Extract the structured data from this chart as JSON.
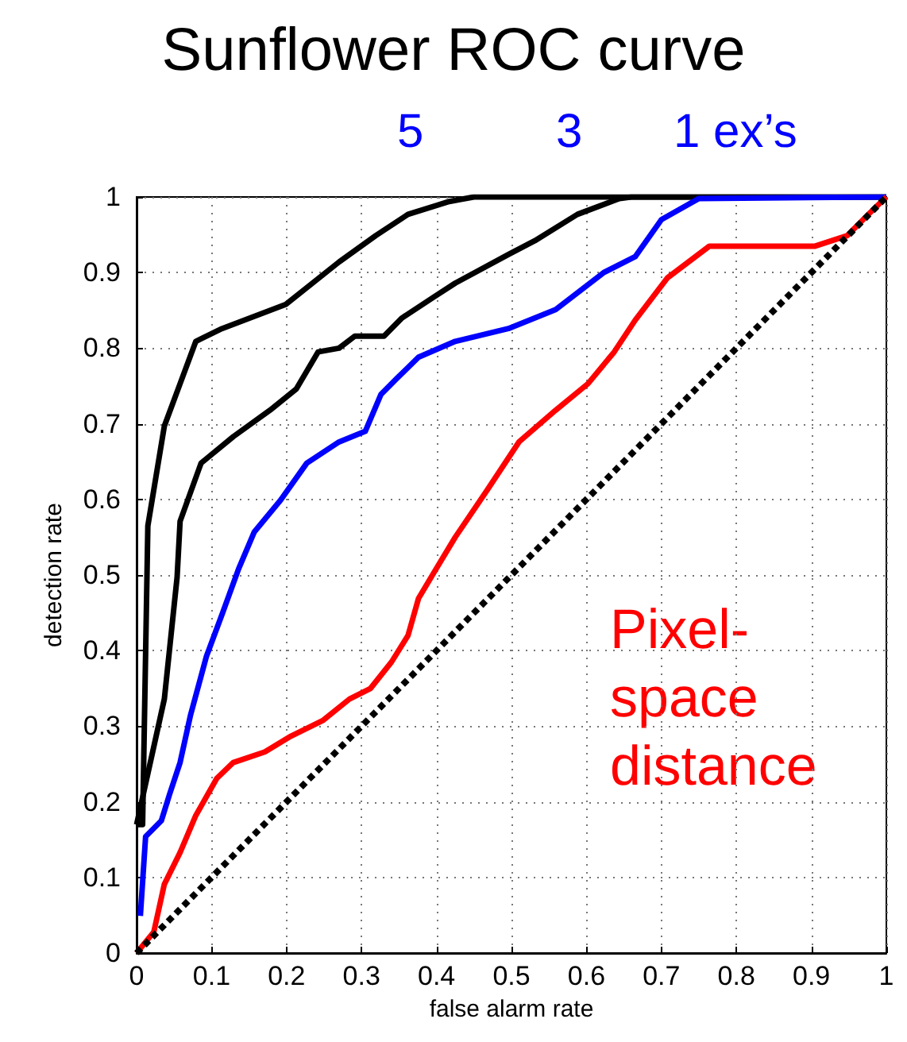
{
  "chart_data": {
    "type": "line",
    "title": "Sunflower ROC curve",
    "xlabel": "false alarm rate",
    "ylabel": "detection rate",
    "annotations": [
      "5",
      "3",
      "1 ex’s",
      "Pixel-space distance"
    ],
    "xlim": [
      0,
      1
    ],
    "ylim": [
      0,
      1
    ],
    "xticks": [
      0,
      0.1,
      0.2,
      0.3,
      0.4,
      0.5,
      0.6,
      0.7,
      0.8,
      0.9,
      1
    ],
    "yticks": [
      0,
      0.1,
      0.2,
      0.3,
      0.4,
      0.5,
      0.6,
      0.7,
      0.8,
      0.9,
      1
    ],
    "grid": true,
    "marker": "none",
    "line_style": "solid",
    "series": [
      {
        "color": "#000000",
        "x": [
          0,
          0.008,
          0.015,
          0.037,
          0.058,
          0.079,
          0.114,
          0.199,
          0.27,
          0.319,
          0.362,
          0.417,
          0.45,
          1
        ],
        "values": [
          0.17,
          0.17,
          0.565,
          0.697,
          0.753,
          0.809,
          0.826,
          0.858,
          0.914,
          0.949,
          0.977,
          0.994,
          1,
          1
        ]
      },
      {
        "color": "#000000",
        "x": [
          0,
          0.037,
          0.054,
          0.058,
          0.086,
          0.129,
          0.178,
          0.213,
          0.242,
          0.27,
          0.291,
          0.33,
          0.354,
          0.397,
          0.425,
          0.496,
          0.531,
          0.588,
          0.644,
          0.66,
          1
        ],
        "values": [
          0.17,
          0.336,
          0.497,
          0.571,
          0.648,
          0.683,
          0.718,
          0.746,
          0.795,
          0.8,
          0.816,
          0.816,
          0.84,
          0.868,
          0.886,
          0.924,
          0.942,
          0.977,
          0.998,
          1,
          1
        ]
      },
      {
        "color": "#0000ff",
        "x": [
          0.005,
          0.012,
          0.033,
          0.044,
          0.058,
          0.072,
          0.093,
          0.114,
          0.136,
          0.157,
          0.192,
          0.227,
          0.27,
          0.305,
          0.326,
          0.347,
          0.376,
          0.425,
          0.496,
          0.559,
          0.623,
          0.665,
          0.7,
          0.75,
          1
        ],
        "values": [
          0.049,
          0.154,
          0.175,
          0.21,
          0.252,
          0.315,
          0.392,
          0.448,
          0.508,
          0.557,
          0.599,
          0.648,
          0.676,
          0.69,
          0.739,
          0.76,
          0.788,
          0.809,
          0.826,
          0.851,
          0.9,
          0.921,
          0.97,
          0.998,
          1
        ]
      },
      {
        "color": "#ff0000",
        "x": [
          0,
          0.023,
          0.037,
          0.058,
          0.079,
          0.107,
          0.129,
          0.171,
          0.206,
          0.249,
          0.284,
          0.312,
          0.34,
          0.362,
          0.376,
          0.397,
          0.425,
          0.468,
          0.51,
          0.559,
          0.602,
          0.637,
          0.665,
          0.708,
          0.764,
          0.905,
          0.948,
          0.976,
          1
        ],
        "values": [
          0,
          0.028,
          0.091,
          0.133,
          0.182,
          0.231,
          0.252,
          0.266,
          0.287,
          0.308,
          0.336,
          0.35,
          0.385,
          0.42,
          0.469,
          0.504,
          0.55,
          0.613,
          0.676,
          0.718,
          0.753,
          0.795,
          0.837,
          0.893,
          0.935,
          0.935,
          0.949,
          0.977,
          1
        ]
      },
      {
        "color": "#000000",
        "line_style": "dashed",
        "x": [
          0,
          1
        ],
        "values": [
          0,
          1
        ]
      }
    ]
  }
}
